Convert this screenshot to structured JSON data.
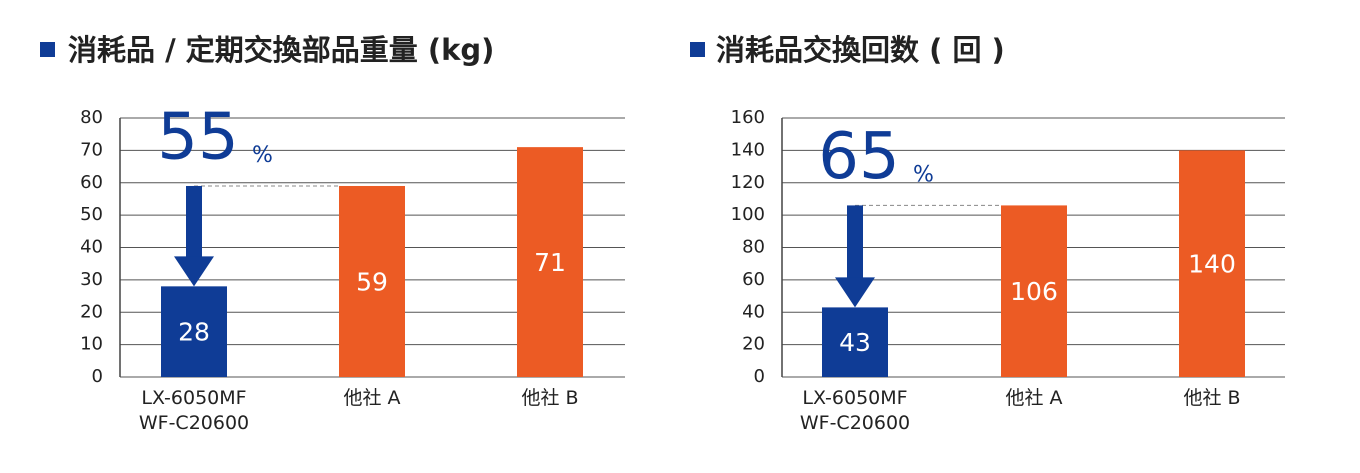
{
  "chart_data": [
    {
      "type": "bar",
      "title": "消耗品 / 定期交換部品重量 (kg)",
      "categories": [
        "LX-6050MF\nWF-C20600",
        "他社 A",
        "他社 B"
      ],
      "values": [
        28,
        59,
        71
      ],
      "colors": [
        "#0f3c96",
        "#ec5b24",
        "#ec5b24"
      ],
      "ylim": [
        0,
        80
      ],
      "yticks": [
        0,
        10,
        20,
        30,
        40,
        50,
        60,
        70,
        80
      ],
      "grid": true,
      "annotation": {
        "text": 55,
        "unit": "%"
      }
    },
    {
      "type": "bar",
      "title": "消耗品交換回数 ( 回 )",
      "categories": [
        "LX-6050MF\nWF-C20600",
        "他社 A",
        "他社 B"
      ],
      "values": [
        43,
        106,
        140
      ],
      "colors": [
        "#0f3c96",
        "#ec5b24",
        "#ec5b24"
      ],
      "ylim": [
        0,
        160
      ],
      "yticks": [
        0,
        20,
        40,
        60,
        80,
        100,
        120,
        140,
        160
      ],
      "grid": true,
      "annotation": {
        "text": 65,
        "unit": "%"
      }
    }
  ]
}
